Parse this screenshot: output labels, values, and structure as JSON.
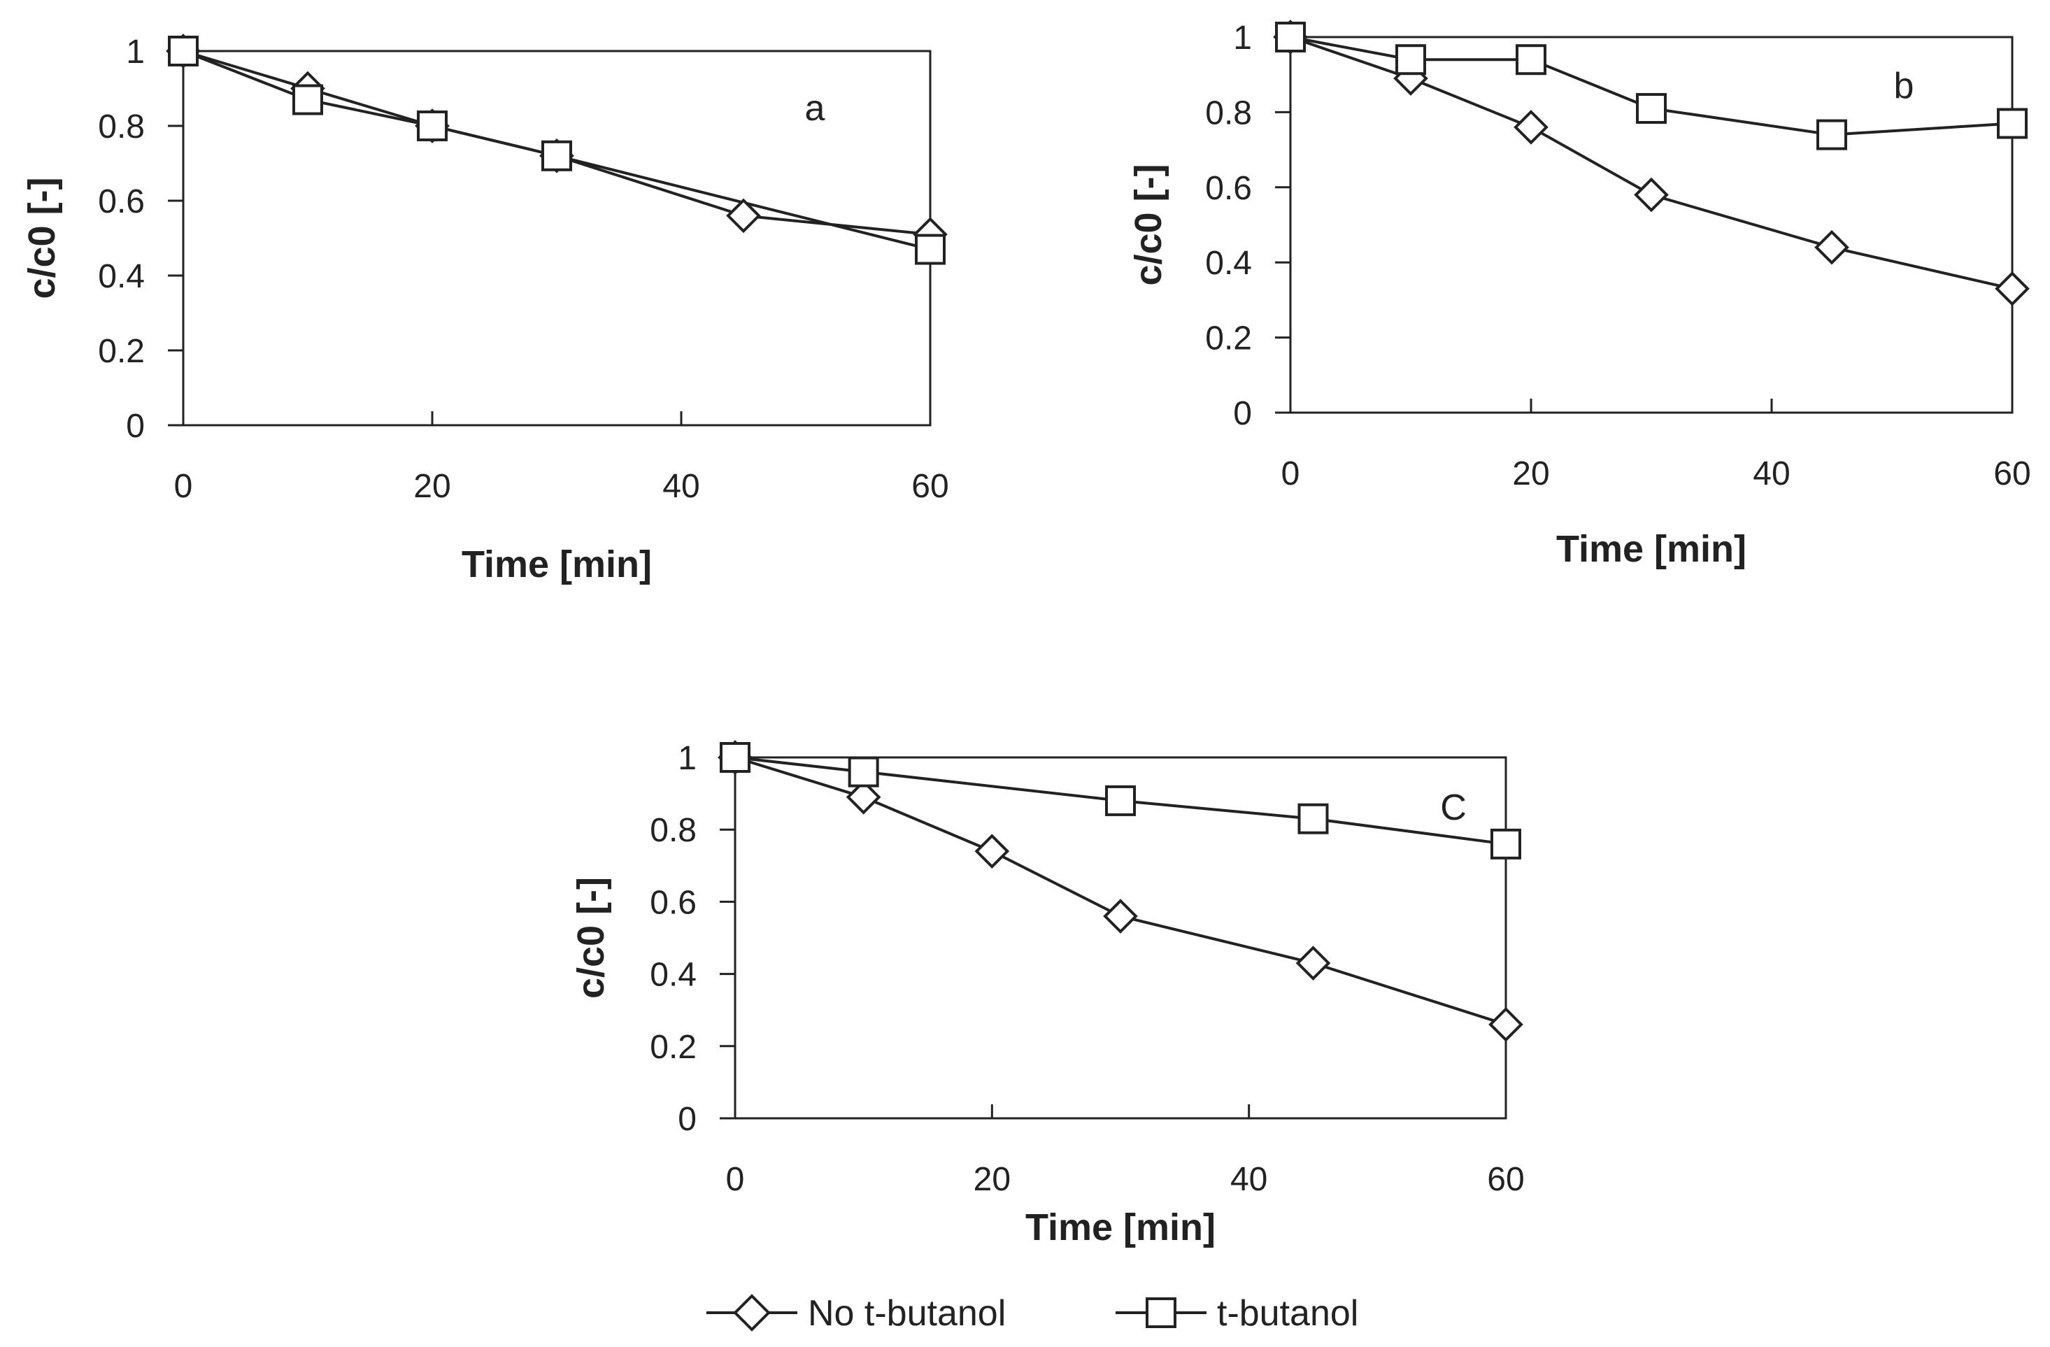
{
  "chart_data": [
    {
      "type": "line",
      "panel": "a",
      "panel_label": "a",
      "xlabel": "Time [min]",
      "ylabel": "c/c0 [-]",
      "xlim": [
        0,
        60
      ],
      "ylim": [
        0,
        1
      ],
      "x_ticks": [
        "0",
        "20",
        "40",
        "60"
      ],
      "y_ticks": [
        "0",
        "0.2",
        "0.4",
        "0.6",
        "0.8",
        "1"
      ],
      "series": [
        {
          "name": "No t-butanol",
          "marker": "diamond",
          "x": [
            0,
            10,
            20,
            30,
            45,
            60
          ],
          "values": [
            1.0,
            0.9,
            0.8,
            0.72,
            0.56,
            0.51
          ]
        },
        {
          "name": "t-butanol",
          "marker": "square",
          "x": [
            0,
            10,
            20,
            30,
            60
          ],
          "values": [
            1.0,
            0.87,
            0.8,
            0.72,
            0.47
          ]
        }
      ]
    },
    {
      "type": "line",
      "panel": "b",
      "panel_label": "b",
      "xlabel": "Time [min]",
      "ylabel": "c/c0 [-]",
      "xlim": [
        0,
        60
      ],
      "ylim": [
        0,
        1
      ],
      "x_ticks": [
        "0",
        "20",
        "40",
        "60"
      ],
      "y_ticks": [
        "0",
        "0.2",
        "0.4",
        "0.6",
        "0.8",
        "1"
      ],
      "series": [
        {
          "name": "No t-butanol",
          "marker": "diamond",
          "x": [
            0,
            10,
            20,
            30,
            45,
            60
          ],
          "values": [
            1.0,
            0.89,
            0.76,
            0.58,
            0.44,
            0.33
          ]
        },
        {
          "name": "t-butanol",
          "marker": "square",
          "x": [
            0,
            10,
            20,
            30,
            45,
            60
          ],
          "values": [
            1.0,
            0.94,
            0.94,
            0.81,
            0.74,
            0.77
          ]
        }
      ]
    },
    {
      "type": "line",
      "panel": "c",
      "panel_label": "C",
      "xlabel": "Time [min]",
      "ylabel": "c/c0 [-]",
      "xlim": [
        0,
        60
      ],
      "ylim": [
        0,
        1
      ],
      "x_ticks": [
        "0",
        "20",
        "40",
        "60"
      ],
      "y_ticks": [
        "0",
        "0.2",
        "0.4",
        "0.6",
        "0.8",
        "1"
      ],
      "series": [
        {
          "name": "No t-butanol",
          "marker": "diamond",
          "x": [
            0,
            10,
            20,
            30,
            45,
            60
          ],
          "values": [
            1.0,
            0.89,
            0.74,
            0.56,
            0.43,
            0.26
          ]
        },
        {
          "name": "t-butanol",
          "marker": "square",
          "x": [
            0,
            10,
            30,
            45,
            60
          ],
          "values": [
            1.0,
            0.96,
            0.88,
            0.83,
            0.76
          ]
        }
      ]
    }
  ],
  "legend": {
    "items": [
      {
        "label": "No t-butanol",
        "marker": "diamond"
      },
      {
        "label": "t-butanol",
        "marker": "square"
      }
    ]
  }
}
